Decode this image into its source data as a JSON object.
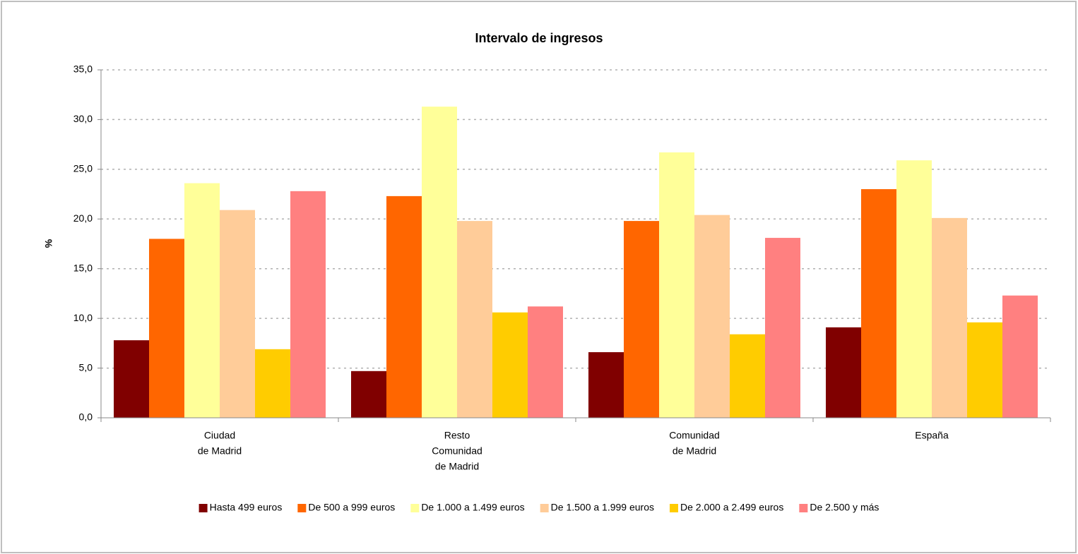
{
  "chart_data": {
    "type": "bar",
    "title": "Intervalo de ingresos",
    "y_label": "%",
    "categories": [
      [
        "Ciudad",
        "de Madrid"
      ],
      [
        "Resto",
        "Comunidad",
        "de Madrid"
      ],
      [
        "Comunidad",
        "de Madrid"
      ],
      [
        "España"
      ]
    ],
    "series": [
      {
        "name": "Hasta 499 euros",
        "color": "#800000",
        "values": [
          7.8,
          4.7,
          6.6,
          9.1
        ]
      },
      {
        "name": "De 500 a 999 euros",
        "color": "#ff6600",
        "values": [
          18.0,
          22.3,
          19.8,
          23.0
        ]
      },
      {
        "name": "De 1.000 a 1.499 euros",
        "color": "#ffff99",
        "values": [
          23.6,
          31.3,
          26.7,
          25.9
        ]
      },
      {
        "name": "De 1.500 a 1.999 euros",
        "color": "#ffcc99",
        "values": [
          20.9,
          19.8,
          20.4,
          20.1
        ]
      },
      {
        "name": "De 2.000 a 2.499 euros",
        "color": "#ffcc00",
        "values": [
          6.9,
          10.6,
          8.4,
          9.6
        ]
      },
      {
        "name": "De 2.500 y más",
        "color": "#ff8080",
        "values": [
          22.8,
          11.2,
          18.1,
          12.3
        ]
      }
    ],
    "ylim": [
      0,
      35
    ],
    "yticks": [
      {
        "value": 0,
        "label": "0,0"
      },
      {
        "value": 5,
        "label": "5,0"
      },
      {
        "value": 10,
        "label": "10,0"
      },
      {
        "value": 15,
        "label": "15,0"
      },
      {
        "value": 20,
        "label": "20,0"
      },
      {
        "value": 25,
        "label": "25,0"
      },
      {
        "value": 30,
        "label": "30,0"
      },
      {
        "value": 35,
        "label": "35,0"
      }
    ],
    "grid": true,
    "legend": "bottom"
  }
}
